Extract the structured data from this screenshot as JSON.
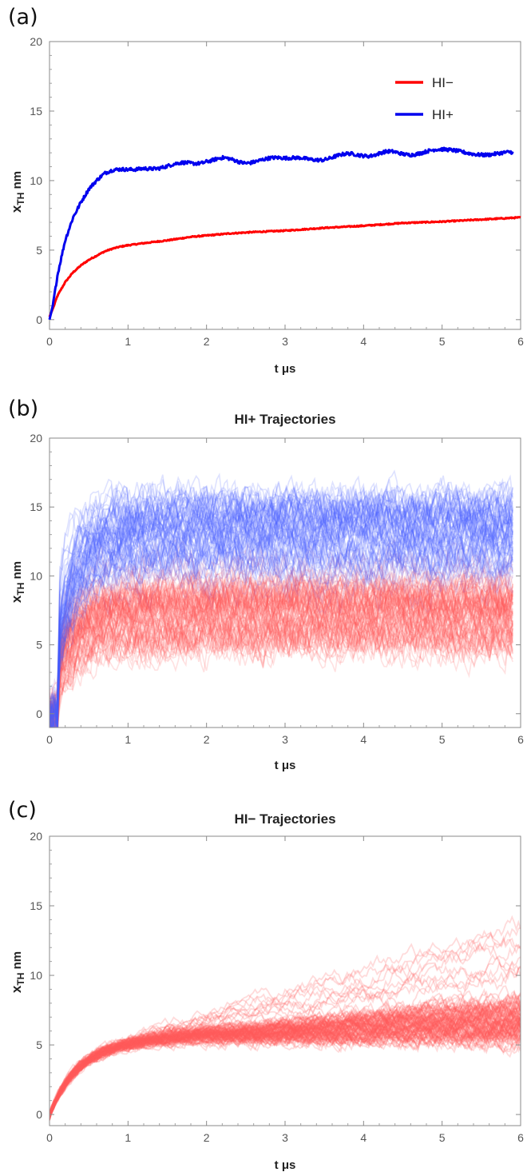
{
  "chart_data": [
    {
      "panel_label": "(a)",
      "type": "line",
      "title": "",
      "xlabel": "t μs",
      "ylabel": "x_TH nm",
      "ylabel_main": "x",
      "ylabel_sub": "TH",
      "ylabel_unit": " nm",
      "xlim": [
        0,
        6
      ],
      "ylim": [
        -0.7,
        20
      ],
      "xticks": [
        "0",
        "1",
        "2",
        "3",
        "4",
        "5",
        "6"
      ],
      "yticks": [
        "0",
        "5",
        "10",
        "15",
        "20"
      ],
      "grid": false,
      "legend_position": "top-right",
      "series": [
        {
          "name": "HI−",
          "color": "#ff0000",
          "x": [
            0,
            0.05,
            0.1,
            0.2,
            0.3,
            0.4,
            0.5,
            0.6,
            0.7,
            0.8,
            0.9,
            1.0,
            1.2,
            1.5,
            1.8,
            2.0,
            2.3,
            2.6,
            3.0,
            3.5,
            4.0,
            4.5,
            5.0,
            5.5,
            6.0
          ],
          "y": [
            0.2,
            0.9,
            1.7,
            2.7,
            3.4,
            3.9,
            4.3,
            4.6,
            4.9,
            5.1,
            5.25,
            5.35,
            5.5,
            5.7,
            5.95,
            6.05,
            6.2,
            6.3,
            6.4,
            6.6,
            6.75,
            6.95,
            7.05,
            7.2,
            7.35
          ]
        },
        {
          "name": "HI+",
          "color": "#0000ee",
          "x": [
            0,
            0.05,
            0.1,
            0.2,
            0.3,
            0.4,
            0.5,
            0.6,
            0.7,
            0.8,
            0.9,
            1.0,
            1.1,
            1.2,
            1.4,
            1.6,
            1.8,
            2.0,
            2.2,
            2.5,
            2.8,
            3.0,
            3.2,
            3.5,
            3.8,
            4.0,
            4.3,
            4.6,
            4.9,
            5.2,
            5.5,
            5.8,
            5.9
          ],
          "y": [
            0,
            1.2,
            3.0,
            5.6,
            7.4,
            8.6,
            9.5,
            10.0,
            10.4,
            10.6,
            10.7,
            10.75,
            10.85,
            11.0,
            11.0,
            11.1,
            11.2,
            11.5,
            11.5,
            11.4,
            11.5,
            11.5,
            11.7,
            11.6,
            11.8,
            11.9,
            11.95,
            12.0,
            12.1,
            12.1,
            12.0,
            11.9,
            11.9
          ]
        }
      ]
    },
    {
      "panel_label": "(b)",
      "type": "line",
      "title": "HI+ Trajectories",
      "xlabel": "t μs",
      "ylabel": "x_TH nm",
      "ylabel_main": "x",
      "ylabel_sub": "TH",
      "ylabel_unit": " nm",
      "xlim": [
        0,
        6
      ],
      "ylim": [
        -1,
        20
      ],
      "xticks": [
        "0",
        "1",
        "2",
        "3",
        "4",
        "5",
        "6"
      ],
      "yticks": [
        "0",
        "5",
        "10",
        "15",
        "20"
      ],
      "grid": false,
      "ensemble": {
        "trajectory_count_visible": "many",
        "t_end": 5.9,
        "plateau_range_low": [
          4,
          9
        ],
        "plateau_range_high": [
          11,
          17
        ],
        "rise_time": 0.5,
        "color_low": "#ff5a5a",
        "color_high": "#4a5cff"
      }
    },
    {
      "panel_label": "(c)",
      "type": "line",
      "title": "HI− Trajectories",
      "xlabel": "t μs",
      "ylabel": "x_TH nm",
      "ylabel_main": "x",
      "ylabel_sub": "TH",
      "ylabel_unit": " nm",
      "xlim": [
        0,
        6
      ],
      "ylim": [
        -0.8,
        20
      ],
      "xticks": [
        "0",
        "1",
        "2",
        "3",
        "4",
        "5",
        "6"
      ],
      "yticks": [
        "0",
        "5",
        "10",
        "15",
        "20"
      ],
      "grid": false,
      "ensemble": {
        "trajectory_count_visible": "many",
        "t_end": 6.0,
        "band_center_end": 6.8,
        "outlier_max": 14.5,
        "color": "#ff5a5a"
      }
    }
  ]
}
